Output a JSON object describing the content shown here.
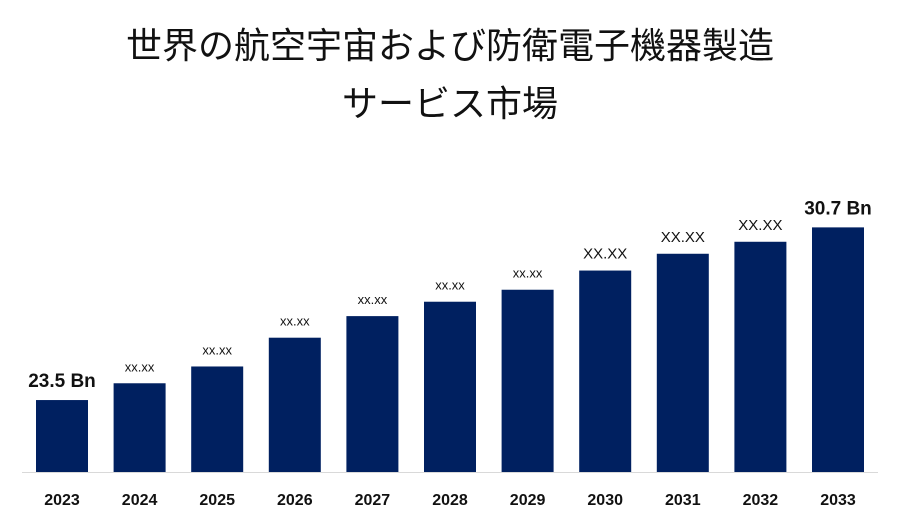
{
  "chart_data": {
    "type": "bar",
    "title_line1": "世界の航空宇宙および防衛電子機器製造",
    "title_line2": "サービス市場",
    "categories": [
      "2023",
      "2024",
      "2025",
      "2026",
      "2027",
      "2028",
      "2029",
      "2030",
      "2031",
      "2032",
      "2033"
    ],
    "values": [
      23.5,
      24.2,
      24.9,
      26.1,
      27.0,
      27.6,
      28.1,
      28.9,
      29.6,
      30.1,
      30.7
    ],
    "value_labels": [
      "23.5 Bn",
      "xx.xx",
      "xx.xx",
      "xx.xx",
      "xx.xx",
      "xx.xx",
      "xx.xx",
      "XX.XX",
      "XX.XX",
      "XX.XX",
      "30.7 Bn"
    ],
    "bar_color": "#002060",
    "axis_color": "#d9d9d9",
    "ylim": [
      20.5,
      31.8
    ],
    "xlabel": "",
    "ylabel": "",
    "legend": "none",
    "grid": false
  }
}
